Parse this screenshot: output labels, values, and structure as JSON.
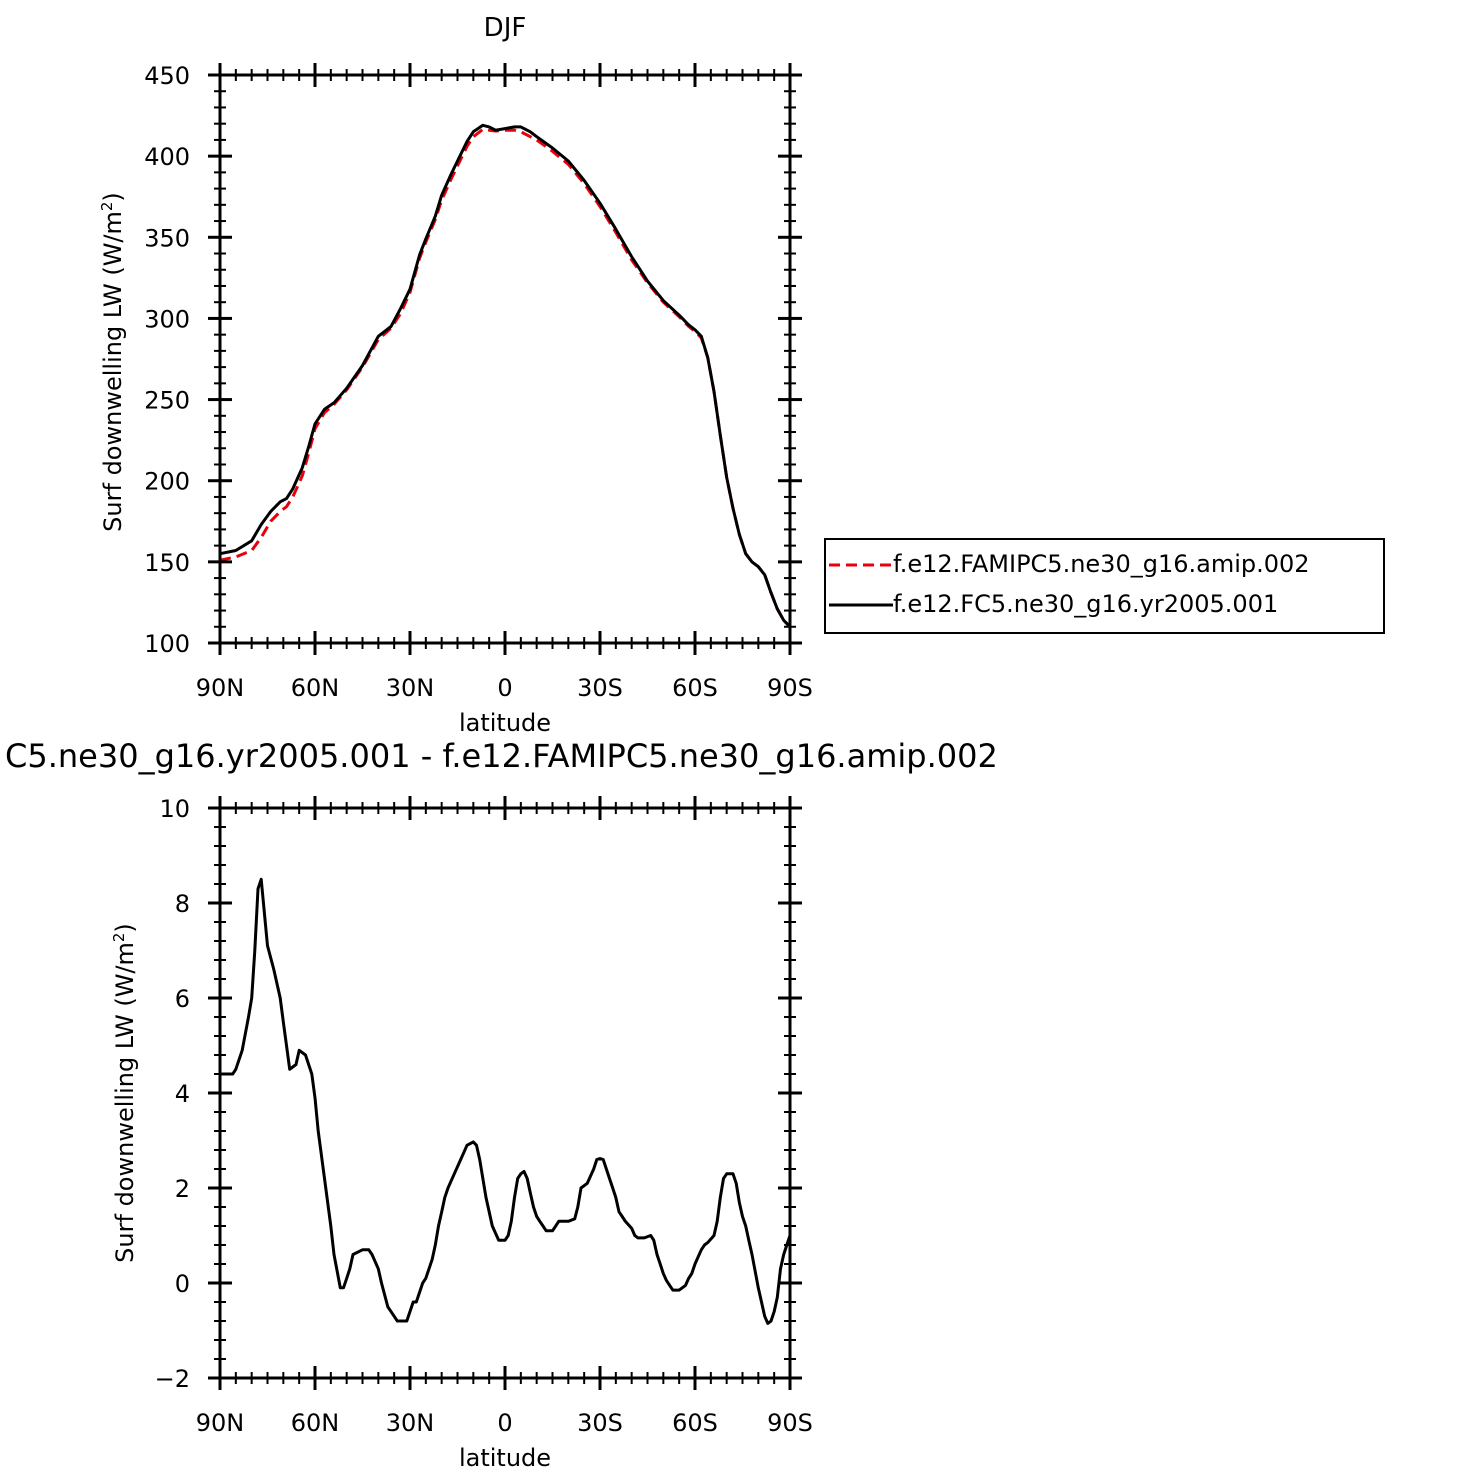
{
  "chart_data": [
    {
      "type": "line",
      "title": "DJF",
      "xlabel": "latitude",
      "ylabel": "Surf downwelling LW (W/m",
      "ylabel_sup": "2",
      "ylabel_end": ")",
      "xlim": [
        90,
        -90
      ],
      "ylim": [
        100,
        450
      ],
      "xticks": [
        90,
        60,
        30,
        0,
        -30,
        -60,
        -90
      ],
      "xtick_labels": [
        "90N",
        "60N",
        "30N",
        "0",
        "30S",
        "60S",
        "90S"
      ],
      "yticks": [
        100,
        150,
        200,
        250,
        300,
        350,
        400,
        450
      ],
      "ytick_labels": [
        "100",
        "150",
        "200",
        "250",
        "300",
        "350",
        "400",
        "450"
      ],
      "legend": "outside-right",
      "series": [
        {
          "name": "f.e12.FAMIPC5.ne30_g16.amip.002",
          "color": "#e8000b",
          "dash": "dashed",
          "x": [
            90,
            85,
            80,
            77,
            74,
            71,
            69,
            67,
            64,
            62,
            60,
            57,
            54,
            50,
            45,
            40,
            36,
            33,
            30,
            27,
            25,
            22,
            20,
            17,
            15,
            12,
            10,
            7,
            5,
            3,
            0,
            -3,
            -5,
            -8,
            -10,
            -15,
            -20,
            -25,
            -30,
            -35,
            -40,
            -45,
            -50,
            -55,
            -58,
            -60,
            -62,
            -64,
            -66,
            -68,
            -70,
            -72,
            -74,
            -76,
            -78,
            -80,
            -82,
            -84,
            -86,
            -88,
            -90
          ],
          "y": [
            151,
            153,
            157,
            165,
            175,
            181,
            184,
            190,
            203,
            217,
            232,
            242,
            247,
            256,
            270,
            287,
            294,
            303,
            316,
            337,
            347,
            361,
            373,
            386,
            394,
            406,
            412,
            416.5,
            416,
            415.5,
            416,
            416,
            415,
            412,
            410,
            403,
            395,
            383,
            369,
            353,
            336,
            322,
            310,
            301,
            295,
            292,
            288,
            276,
            255,
            228,
            202,
            183,
            167,
            155,
            150,
            147,
            142,
            131,
            121,
            114,
            110
          ]
        },
        {
          "name": "f.e12.FC5.ne30_g16.yr2005.001",
          "color": "#000000",
          "dash": "solid",
          "x": [
            90,
            85,
            80,
            77,
            74,
            71,
            69,
            67,
            64,
            62,
            60,
            57,
            54,
            50,
            45,
            40,
            36,
            33,
            30,
            27,
            25,
            22,
            20,
            17,
            15,
            12,
            10,
            7,
            5,
            3,
            0,
            -3,
            -5,
            -8,
            -10,
            -15,
            -20,
            -25,
            -30,
            -35,
            -40,
            -45,
            -50,
            -55,
            -58,
            -60,
            -62,
            -64,
            -66,
            -68,
            -70,
            -72,
            -74,
            -76,
            -78,
            -80,
            -82,
            -84,
            -86,
            -88,
            -90
          ],
          "y": [
            155,
            157,
            163,
            173,
            181,
            187,
            189,
            195,
            208,
            221,
            235,
            244,
            248,
            257,
            271,
            289,
            295,
            306,
            318,
            339,
            349,
            363,
            376,
            389,
            397,
            409,
            415,
            419,
            418,
            416,
            417,
            418,
            418,
            415,
            412,
            405,
            397,
            385,
            371,
            355,
            338,
            323,
            311,
            302,
            296,
            293,
            289,
            276,
            255,
            228,
            202,
            183,
            167,
            155,
            150,
            147,
            142,
            131,
            121,
            114,
            110
          ]
        }
      ]
    },
    {
      "type": "line",
      "title": "C5.ne30_g16.yr2005.001 - f.e12.FAMIPC5.ne30_g16.amip.002",
      "xlabel": "latitude",
      "ylabel": "Surf downwelling LW (W/m",
      "ylabel_sup": "2",
      "ylabel_end": ")",
      "xlim": [
        90,
        -90
      ],
      "ylim": [
        -2,
        10
      ],
      "xticks": [
        90,
        60,
        30,
        0,
        -30,
        -60,
        -90
      ],
      "xtick_labels": [
        "90N",
        "60N",
        "30N",
        "0",
        "30S",
        "60S",
        "90S"
      ],
      "yticks": [
        -2,
        0,
        2,
        4,
        6,
        8,
        10
      ],
      "ytick_labels": [
        "−2",
        "0",
        "2",
        "4",
        "6",
        "8",
        "10"
      ],
      "series": [
        {
          "color": "#000000",
          "dash": "solid",
          "x": [
            90,
            86,
            85,
            83,
            81,
            80,
            79,
            78,
            77,
            75,
            73,
            71,
            70,
            69,
            68,
            66,
            65,
            63,
            61,
            60,
            59,
            57,
            55,
            54,
            52,
            51,
            50,
            49,
            48,
            45,
            43,
            42,
            40,
            39,
            37,
            35,
            34,
            33,
            32,
            31,
            30,
            29,
            28,
            27,
            26,
            25,
            24,
            23,
            22,
            21,
            20,
            19,
            18,
            16,
            14,
            12,
            10,
            9,
            8,
            6,
            4,
            2,
            0,
            -1,
            -2,
            -3,
            -4,
            -5,
            -6,
            -7,
            -8,
            -9,
            -10,
            -11,
            -12,
            -13,
            -15,
            -16,
            -17,
            -18,
            -20,
            -22,
            -23,
            -24,
            -26,
            -28,
            -29,
            -30,
            -31,
            -33,
            -34,
            -35,
            -36,
            -37,
            -38,
            -40,
            -41,
            -42,
            -44,
            -46,
            -47,
            -48,
            -49,
            -50,
            -51,
            -52,
            -53,
            -55,
            -57,
            -58,
            -59,
            -60,
            -62,
            -63,
            -64,
            -66,
            -67,
            -68,
            -69,
            -70,
            -71,
            -72,
            -73,
            -74,
            -75,
            -76,
            -77,
            -78,
            -80,
            -81,
            -82,
            -83,
            -84,
            -85,
            -86,
            -87,
            -88,
            -89,
            -90
          ],
          "y": [
            4.4,
            4.4,
            4.5,
            4.9,
            5.6,
            6,
            7,
            8.3,
            8.5,
            7.1,
            6.6,
            6,
            5.5,
            5,
            4.5,
            4.6,
            4.9,
            4.8,
            4.4,
            3.9,
            3.2,
            2.2,
            1.2,
            0.6,
            -0.1,
            -0.1,
            0.1,
            0.3,
            0.6,
            0.7,
            0.7,
            0.6,
            0.3,
            0,
            -0.5,
            -0.7,
            -0.8,
            -0.8,
            -0.8,
            -0.8,
            -0.6,
            -0.4,
            -0.4,
            -0.2,
            0,
            0.1,
            0.3,
            0.5,
            0.8,
            1.2,
            1.5,
            1.8,
            2,
            2.3,
            2.6,
            2.9,
            2.97,
            2.9,
            2.6,
            1.8,
            1.2,
            0.9,
            0.9,
            1,
            1.3,
            1.8,
            2.2,
            2.3,
            2.35,
            2.2,
            1.9,
            1.6,
            1.4,
            1.3,
            1.2,
            1.1,
            1.1,
            1.2,
            1.3,
            1.3,
            1.3,
            1.35,
            1.6,
            2,
            2.1,
            2.4,
            2.6,
            2.62,
            2.6,
            2.2,
            2,
            1.8,
            1.5,
            1.4,
            1.3,
            1.15,
            1,
            0.95,
            0.95,
            1,
            0.9,
            0.6,
            0.4,
            0.2,
            0.05,
            -0.05,
            -0.15,
            -0.15,
            -0.05,
            0.1,
            0.2,
            0.4,
            0.7,
            0.8,
            0.85,
            1,
            1.3,
            1.8,
            2.2,
            2.3,
            2.3,
            2.3,
            2.1,
            1.7,
            1.4,
            1.2,
            0.9,
            0.6,
            -0.1,
            -0.4,
            -0.7,
            -0.85,
            -0.8,
            -0.6,
            -0.3,
            0.3,
            0.6,
            0.8,
            1
          ]
        }
      ]
    }
  ]
}
